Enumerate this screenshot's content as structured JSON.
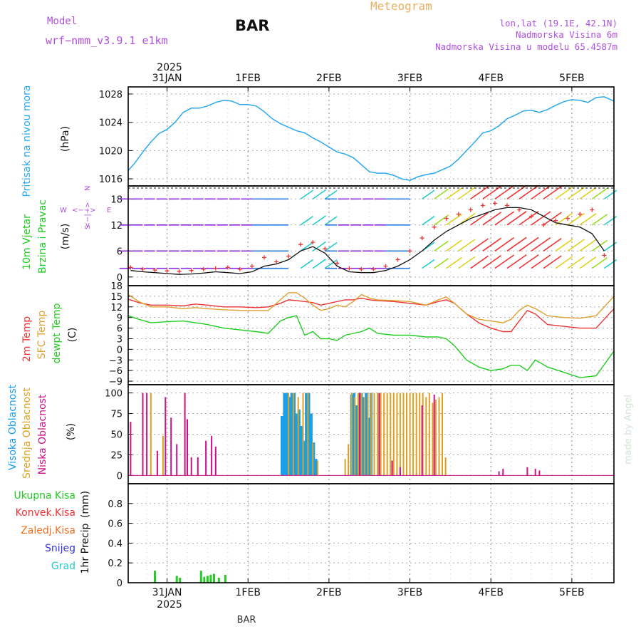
{
  "header": {
    "model_label": "Model",
    "model_name": "wrf−nmm_v3.9.1  e1km",
    "station": "BAR",
    "title": "Meteogram",
    "location": "lon,lat (19.1E, 42.1N)",
    "elevation": "Nadmorska Visina 6m",
    "model_elevation": "Nadmorska Visina u modelu 65.4587m",
    "footer_station": "BAR",
    "credit": "made by Angel"
  },
  "time_axis": {
    "top_year": "2025",
    "bottom_year": "2025",
    "day_labels": [
      "31JAN",
      "1FEB",
      "2FEB",
      "3FEB",
      "4FEB",
      "5FEB"
    ],
    "range_days": [
      -0.48,
      5.52
    ]
  },
  "colors": {
    "pressure": "#2aa8ee",
    "temp": "#ee3333",
    "sfc_temp": "#e0a030",
    "dewpt": "#22cc22",
    "high_cloud": "#1aa0e8",
    "mid_cloud": "#e0a020",
    "low_cloud": "#cc1188",
    "precip_total": "#22cc22",
    "model": "#b050e0",
    "title": "#e8b060",
    "info": "#b050e0"
  },
  "chart_data": [
    {
      "type": "line",
      "panel": "pressure",
      "ylabel": "Pritisak na nivou mora",
      "unit": "(hPa)",
      "ylim": [
        1015,
        1029
      ],
      "yticks": [
        1016,
        1020,
        1024,
        1028
      ],
      "x": [
        -0.48,
        -0.4,
        -0.3,
        -0.2,
        -0.1,
        0,
        0.1,
        0.2,
        0.3,
        0.4,
        0.5,
        0.6,
        0.7,
        0.8,
        0.9,
        1,
        1.1,
        1.2,
        1.3,
        1.4,
        1.5,
        1.6,
        1.7,
        1.8,
        1.9,
        2,
        2.1,
        2.2,
        2.3,
        2.4,
        2.5,
        2.6,
        2.7,
        2.8,
        2.9,
        3,
        3.1,
        3.2,
        3.3,
        3.4,
        3.5,
        3.6,
        3.7,
        3.8,
        3.9,
        4,
        4.1,
        4.2,
        4.3,
        4.4,
        4.5,
        4.6,
        4.7,
        4.8,
        4.9,
        5,
        5.1,
        5.2,
        5.3,
        5.4,
        5.52
      ],
      "series": [
        {
          "values": [
            1017.2,
            1018.2,
            1019.8,
            1021.2,
            1022.4,
            1023.0,
            1024.0,
            1025.4,
            1026.0,
            1026.0,
            1026.3,
            1026.8,
            1027.1,
            1027.0,
            1026.5,
            1026.5,
            1026.3,
            1025.5,
            1024.5,
            1023.8,
            1023.3,
            1022.8,
            1022.5,
            1021.8,
            1021.2,
            1020.5,
            1019.8,
            1019.5,
            1019.0,
            1018.0,
            1017.0,
            1016.8,
            1016.8,
            1016.5,
            1016.0,
            1015.8,
            1016.3,
            1016.6,
            1016.8,
            1017.3,
            1017.8,
            1018.8,
            1020.0,
            1021.2,
            1022.5,
            1022.8,
            1023.5,
            1024.5,
            1025.0,
            1025.6,
            1025.7,
            1025.4,
            1025.8,
            1026.4,
            1026.9,
            1027.2,
            1027.1,
            1026.8,
            1027.5,
            1027.6,
            1027.0
          ]
        }
      ]
    },
    {
      "type": "scatter",
      "panel": "wind",
      "ylabel": "10m Vjetar",
      "ylabel2": "Brzina i Pravac",
      "unit": "(m/s)",
      "compass": {
        "w": "W",
        "e": "E",
        "n": "N",
        "s": "S",
        "arrow_h": "<−−>",
        "arrow_v": "<−|−>"
      },
      "ylim": [
        -2,
        21
      ],
      "yticks": [
        0,
        6,
        12,
        18
      ],
      "x": [
        -0.45,
        -0.3,
        -0.15,
        0,
        0.15,
        0.3,
        0.45,
        0.6,
        0.75,
        0.9,
        1.05,
        1.2,
        1.35,
        1.5,
        1.65,
        1.8,
        1.95,
        2.1,
        2.25,
        2.4,
        2.55,
        2.7,
        2.85,
        3.0,
        3.15,
        3.3,
        3.45,
        3.6,
        3.75,
        3.9,
        4.05,
        4.2,
        4.35,
        4.5,
        4.65,
        4.8,
        4.95,
        5.1,
        5.25,
        5.4
      ],
      "series": [
        {
          "name": "speed",
          "values": [
            1.5,
            1.2,
            1.0,
            0.8,
            0.6,
            0.7,
            0.9,
            1.2,
            1.0,
            0.8,
            1.2,
            2.5,
            3.0,
            4.0,
            6.0,
            7.0,
            5.5,
            2.5,
            1.2,
            1.0,
            1.0,
            1.5,
            2.5,
            4.0,
            6.0,
            8.5,
            10.5,
            12.0,
            13.5,
            14.5,
            15.5,
            16.0,
            16.0,
            15.5,
            14.0,
            12.5,
            12.0,
            11.5,
            10.0,
            6.0
          ]
        },
        {
          "name": "gust",
          "values": [
            2.2,
            1.8,
            1.6,
            1.4,
            1.3,
            1.5,
            1.8,
            2.0,
            2.2,
            1.8,
            2.5,
            4.5,
            3.5,
            4.8,
            7.5,
            8.0,
            6.5,
            3.2,
            2.0,
            1.8,
            1.8,
            2.5,
            4.0,
            6.0,
            9.0,
            11.5,
            13.5,
            14.5,
            15.5,
            16.5,
            17.0,
            16.5,
            15.5,
            14.0,
            12.0,
            13.0,
            13.5,
            14.5,
            15.5,
            5.0
          ]
        }
      ]
    },
    {
      "type": "line",
      "panel": "temperature",
      "ylabel": "2m Temp",
      "ylabel2": "SFC Temp",
      "ylabel3": "dewpt Temp",
      "unit": "(C)",
      "ylim": [
        -10,
        18
      ],
      "yticks": [
        -9,
        -6,
        -3,
        0,
        3,
        6,
        9,
        12,
        15,
        18
      ],
      "x": [
        -0.48,
        -0.35,
        -0.2,
        0,
        0.2,
        0.35,
        0.5,
        0.7,
        0.9,
        1.1,
        1.25,
        1.4,
        1.5,
        1.6,
        1.7,
        1.8,
        1.9,
        2.0,
        2.1,
        2.2,
        2.3,
        2.4,
        2.5,
        2.6,
        2.8,
        3.0,
        3.2,
        3.35,
        3.45,
        3.55,
        3.7,
        3.85,
        4.0,
        4.15,
        4.25,
        4.35,
        4.45,
        4.55,
        4.7,
        4.9,
        5.1,
        5.3,
        5.52
      ],
      "series": [
        {
          "name": "2m Temp",
          "values": [
            14.2,
            13.2,
            12.5,
            12.5,
            12.3,
            12.8,
            12.5,
            12.0,
            12.0,
            11.8,
            12.0,
            13.0,
            14.0,
            13.8,
            13.5,
            13.2,
            12.5,
            13.0,
            13.5,
            14.0,
            14.0,
            14.5,
            14.0,
            13.8,
            13.5,
            13.0,
            12.5,
            13.5,
            14.0,
            13.0,
            10.0,
            7.5,
            6.0,
            5.0,
            5.0,
            8.0,
            11.0,
            10.0,
            7.0,
            6.5,
            6.0,
            6.0,
            11.5
          ]
        },
        {
          "name": "SFC Temp",
          "values": [
            15.5,
            13.5,
            12.0,
            12.0,
            11.5,
            11.8,
            11.5,
            11.2,
            11.0,
            11.0,
            11.0,
            14.0,
            16.0,
            16.0,
            14.5,
            12.5,
            11.0,
            11.5,
            12.5,
            12.0,
            13.5,
            15.5,
            14.5,
            14.0,
            13.8,
            13.5,
            12.5,
            14.0,
            14.8,
            13.0,
            10.0,
            8.5,
            8.0,
            7.5,
            8.5,
            11.0,
            12.5,
            11.5,
            9.5,
            9.0,
            8.8,
            9.5,
            15.0
          ]
        },
        {
          "name": "dewpt Temp",
          "values": [
            9.5,
            8.5,
            7.5,
            7.8,
            8.0,
            7.5,
            7.0,
            6.0,
            5.5,
            5.0,
            4.5,
            8.0,
            9.0,
            9.5,
            4.0,
            5.0,
            3.0,
            3.0,
            2.5,
            4.0,
            4.5,
            5.0,
            6.0,
            4.5,
            4.0,
            4.0,
            3.5,
            3.5,
            3.0,
            1.0,
            -3.0,
            -5.0,
            -6.0,
            -5.5,
            -4.5,
            -4.5,
            -6.0,
            -3.0,
            -5.0,
            -6.5,
            -8.0,
            -7.5,
            -0.5
          ]
        }
      ]
    },
    {
      "type": "bar",
      "panel": "clouds",
      "ylabel": "Visoka Oblacnost",
      "ylabel2": "Srednja Oblacnost",
      "ylabel3": "Niska Oblacnost",
      "unit": "(%)",
      "ylim": [
        -10,
        110
      ],
      "yticks": [
        0,
        25,
        50,
        75,
        100
      ],
      "series": [
        {
          "name": "Visoka Oblacnost",
          "x": [
            1.42,
            1.45,
            1.48,
            1.51,
            1.54,
            1.57,
            1.6,
            1.63,
            1.66,
            1.69,
            1.72,
            1.75,
            1.78,
            1.81,
            1.84,
            2.28,
            2.31,
            2.34,
            2.37,
            2.4,
            2.43,
            2.46,
            2.49,
            2.52
          ],
          "values": [
            72,
            100,
            100,
            95,
            100,
            100,
            75,
            80,
            60,
            42,
            100,
            100,
            75,
            40,
            20,
            98,
            100,
            85,
            100,
            100,
            95,
            100,
            70,
            100
          ]
        },
        {
          "name": "Srednja Oblacnost",
          "x": [
            1.5,
            1.56,
            1.62,
            1.68,
            1.74,
            1.8,
            1.86,
            2.2,
            2.24,
            2.28,
            2.32,
            2.36,
            2.4,
            2.44,
            2.48,
            2.52,
            2.56,
            2.6,
            2.64,
            2.68,
            2.72,
            2.76,
            2.8,
            2.84,
            2.88,
            2.92,
            2.96,
            3.0,
            3.04,
            3.08,
            3.12,
            3.16,
            3.2,
            3.24,
            3.28,
            3.32,
            3.36,
            3.4,
            3.44,
            -0.2,
            -0.05
          ],
          "values": [
            100,
            100,
            95,
            100,
            100,
            40,
            18,
            20,
            38,
            100,
            95,
            100,
            100,
            95,
            100,
            100,
            100,
            100,
            100,
            100,
            100,
            100,
            100,
            100,
            100,
            100,
            100,
            100,
            100,
            100,
            100,
            100,
            95,
            100,
            88,
            92,
            95,
            100,
            22,
            100,
            48
          ]
        },
        {
          "name": "Niska Oblacnost",
          "x": [
            -0.45,
            -0.3,
            -0.25,
            -0.12,
            -0.02,
            0.05,
            0.12,
            0.22,
            0.25,
            0.3,
            0.38,
            0.48,
            0.55,
            0.6,
            2.38,
            2.62,
            2.78,
            2.88,
            3.15,
            3.3,
            4.1,
            4.15,
            4.45,
            4.55,
            4.6
          ],
          "values": [
            65,
            100,
            100,
            30,
            95,
            70,
            38,
            100,
            68,
            22,
            22,
            42,
            48,
            35,
            100,
            100,
            18,
            10,
            85,
            98,
            5,
            8,
            10,
            8,
            6
          ]
        }
      ]
    },
    {
      "type": "bar",
      "panel": "precip",
      "ylabel": "1hr Precip",
      "unit": "(mm)",
      "ylim": [
        0,
        1.0
      ],
      "yticks": [
        0.0,
        0.2,
        0.4,
        0.6,
        0.8
      ],
      "legend": [
        "Ukupna Kisa",
        "Konvek.Kisa",
        "Zaledj.Kisa",
        "Snijeg",
        "Grad"
      ],
      "series": [
        {
          "name": "Ukupna Kisa",
          "x": [
            -0.15,
            -0.15,
            0.12,
            0.16,
            0.42,
            0.46,
            0.5,
            0.54,
            0.58,
            0.64,
            0.72
          ],
          "values": [
            0.12,
            0.12,
            0.07,
            0.05,
            0.12,
            0.06,
            0.07,
            0.08,
            0.09,
            0.05,
            0.08
          ]
        }
      ]
    }
  ]
}
